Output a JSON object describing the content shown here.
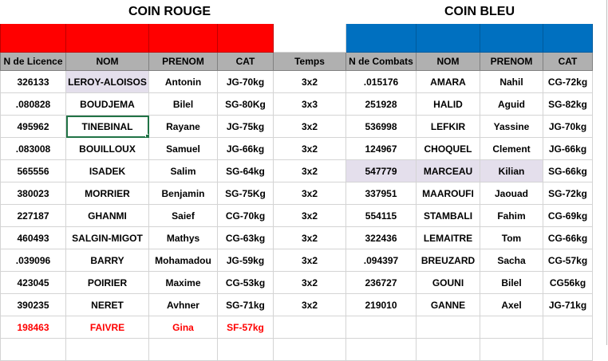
{
  "titles": {
    "red_corner": "COIN ROUGE",
    "blue_corner": "COIN BLEU"
  },
  "colors": {
    "red": "#ff0000",
    "blue": "#0070c0",
    "header_gray": "#b0b0b0",
    "highlight": "#e4dfec"
  },
  "headers": {
    "licence": "N de Licence",
    "nom_r": "NOM",
    "prenom_r": "PRENOM",
    "cat_r": "CAT",
    "temps": "Temps",
    "combats": "N de Combats",
    "nom_b": "NOM",
    "prenom_b": "PRENOM",
    "cat_b": "CAT"
  },
  "rows": [
    {
      "licence": "326133",
      "nom_r": "LEROY-ALOISOS",
      "prenom_r": "Antonin",
      "cat_r": "JG-70kg",
      "temps": "3x2",
      "combats": ".015176",
      "nom_b": "AMARA",
      "prenom_b": "Nahil",
      "cat_b": "CG-72kg"
    },
    {
      "licence": ".080828",
      "nom_r": "BOUDJEMA",
      "prenom_r": "Bilel",
      "cat_r": "SG-80Kg",
      "temps": "3x3",
      "combats": "251928",
      "nom_b": "HALID",
      "prenom_b": "Aguid",
      "cat_b": "SG-82kg"
    },
    {
      "licence": "495962",
      "nom_r": "TINEBINAL",
      "prenom_r": "Rayane",
      "cat_r": "JG-75kg",
      "temps": "3x2",
      "combats": "536998",
      "nom_b": "LEFKIR",
      "prenom_b": "Yassine",
      "cat_b": "JG-70kg"
    },
    {
      "licence": ".083008",
      "nom_r": "BOUILLOUX",
      "prenom_r": "Samuel",
      "cat_r": "JG-66kg",
      "temps": "3x2",
      "combats": "124967",
      "nom_b": "CHOQUEL",
      "prenom_b": "Clement",
      "cat_b": "JG-66kg"
    },
    {
      "licence": "565556",
      "nom_r": "ISADEK",
      "prenom_r": "Salim",
      "cat_r": "SG-64kg",
      "temps": "3x2",
      "combats": "547779",
      "nom_b": "MARCEAU",
      "prenom_b": "Kilian",
      "cat_b": "SG-66kg"
    },
    {
      "licence": "380023",
      "nom_r": "MORRIER",
      "prenom_r": "Benjamin",
      "cat_r": "SG-75Kg",
      "temps": "3x2",
      "combats": "337951",
      "nom_b": "MAAROUFI",
      "prenom_b": "Jaouad",
      "cat_b": "SG-72kg"
    },
    {
      "licence": "227187",
      "nom_r": "GHANMI",
      "prenom_r": "Saief",
      "cat_r": "CG-70kg",
      "temps": "3x2",
      "combats": "554115",
      "nom_b": "STAMBALI",
      "prenom_b": "Fahim",
      "cat_b": "CG-69kg"
    },
    {
      "licence": "460493",
      "nom_r": "SALGIN-MIGOT",
      "prenom_r": "Mathys",
      "cat_r": "CG-63kg",
      "temps": "3x2",
      "combats": "322436",
      "nom_b": "LEMAITRE",
      "prenom_b": "Tom",
      "cat_b": "CG-66kg"
    },
    {
      "licence": ".039096",
      "nom_r": "BARRY",
      "prenom_r": "Mohamadou",
      "cat_r": "JG-59kg",
      "temps": "3x2",
      "combats": ".094397",
      "nom_b": "BREUZARD",
      "prenom_b": "Sacha",
      "cat_b": "CG-57kg"
    },
    {
      "licence": "423045",
      "nom_r": "POIRIER",
      "prenom_r": "Maxime",
      "cat_r": "CG-53kg",
      "temps": "3x2",
      "combats": "236727",
      "nom_b": "GOUNI",
      "prenom_b": "Bilel",
      "cat_b": "CG56kg"
    },
    {
      "licence": "390235",
      "nom_r": "NERET",
      "prenom_r": "Avhner",
      "cat_r": "SG-71kg",
      "temps": "3x2",
      "combats": "219010",
      "nom_b": "GANNE",
      "prenom_b": "Axel",
      "cat_b": "JG-71kg"
    },
    {
      "licence": "198463",
      "nom_r": "FAIVRE",
      "prenom_r": "Gina",
      "cat_r": "SF-57kg",
      "temps": "",
      "combats": "",
      "nom_b": "",
      "prenom_b": "",
      "cat_b": ""
    }
  ]
}
